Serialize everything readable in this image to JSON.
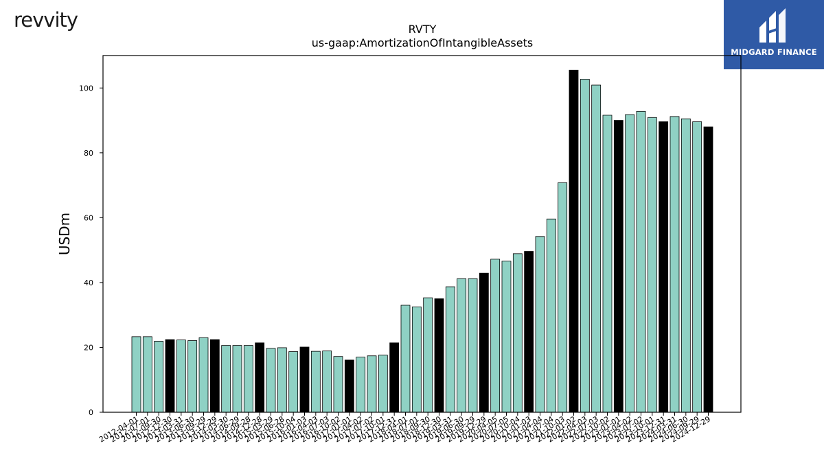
{
  "brand": {
    "company_logo_text": "revvity",
    "partner_logo_text": "MIDGARD FINANCE"
  },
  "colors": {
    "bar_regular": "#8fd1c4",
    "bar_highlight": "#000000",
    "partner_bg": "#2f5aa6"
  },
  "chart_data": {
    "type": "bar",
    "title": "RVTY",
    "subtitle": "us-gaap:AmortizationOfIntangibleAssets",
    "ylabel": "USDm",
    "xlabel": "",
    "ylim": [
      0,
      110
    ],
    "yticks": [
      0,
      20,
      40,
      60,
      80,
      100
    ],
    "grid": false,
    "categories": [
      "2012-04-01",
      "2012-07-01",
      "2012-09-30",
      "2012-12-30",
      "2013-03-31",
      "2013-06-30",
      "2013-09-29",
      "2013-12-29",
      "2014-03-30",
      "2014-06-29",
      "2014-09-28",
      "2014-12-28",
      "2015-03-29",
      "2015-06-28",
      "2015-10-04",
      "2016-01-03",
      "2016-04-03",
      "2016-07-03",
      "2016-10-02",
      "2017-01-01",
      "2017-04-02",
      "2017-07-02",
      "2017-10-01",
      "2017-12-31",
      "2018-04-01",
      "2018-07-01",
      "2018-09-30",
      "2018-12-30",
      "2019-03-31",
      "2019-06-30",
      "2019-09-29",
      "2019-12-29",
      "2020-04-05",
      "2020-07-05",
      "2020-10-04",
      "2021-01-03",
      "2021-04-04",
      "2021-07-04",
      "2021-10-03",
      "2022-01-02",
      "2022-04-03",
      "2022-07-03",
      "2022-10-02",
      "2023-01-01",
      "2023-04-02",
      "2023-07-02",
      "2023-10-01",
      "2023-12-31",
      "2024-03-31",
      "2024-06-30",
      "2024-09-29",
      "2024-12-29"
    ],
    "values": [
      23.3,
      23.3,
      21.9,
      22.4,
      22.3,
      22.1,
      23.0,
      22.4,
      20.6,
      20.6,
      20.6,
      21.4,
      19.7,
      19.9,
      18.7,
      20.1,
      18.8,
      18.9,
      17.2,
      16.1,
      17.0,
      17.4,
      17.6,
      21.4,
      33.0,
      32.5,
      35.3,
      35.0,
      38.7,
      41.2,
      41.2,
      42.9,
      47.2,
      46.6,
      48.9,
      49.6,
      54.2,
      59.6,
      70.8,
      105.5,
      102.7,
      100.9,
      91.6,
      90.0,
      91.8,
      92.8,
      90.9,
      89.6,
      91.2,
      90.5,
      89.6,
      88.0
    ],
    "highlighted": [
      false,
      false,
      false,
      true,
      false,
      false,
      false,
      true,
      false,
      false,
      false,
      true,
      false,
      false,
      false,
      true,
      false,
      false,
      false,
      true,
      false,
      false,
      false,
      true,
      false,
      false,
      false,
      true,
      false,
      false,
      false,
      true,
      false,
      false,
      false,
      true,
      false,
      false,
      false,
      true,
      false,
      false,
      false,
      true,
      false,
      false,
      false,
      true,
      false,
      false,
      false,
      true
    ]
  }
}
